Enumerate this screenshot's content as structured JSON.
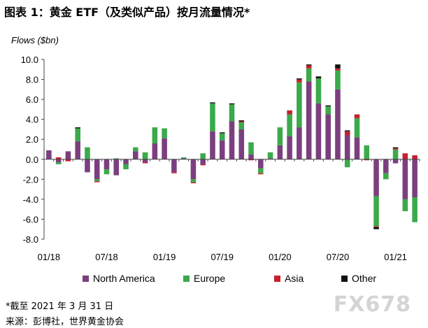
{
  "title": "图表 1：黄金 ETF（及类似产品）按月流量情况*",
  "note": "*截至 2021 年 3 月 31 日",
  "source": "来源：彭博社，世界黄金协会",
  "watermark": "FX678",
  "chart_data": {
    "type": "bar",
    "stacked": true,
    "ylabel": "Flows ($bn)",
    "ylim": [
      -8.0,
      10.0
    ],
    "yticks": [
      "-8.0",
      "-6.0",
      "-4.0",
      "-2.0",
      "0.0",
      "2.0",
      "4.0",
      "6.0",
      "8.0",
      "10.0"
    ],
    "x_tick_labels": [
      {
        "index": 0,
        "label": "01/18"
      },
      {
        "index": 6,
        "label": "07/18"
      },
      {
        "index": 12,
        "label": "01/19"
      },
      {
        "index": 18,
        "label": "07/19"
      },
      {
        "index": 24,
        "label": "01/20"
      },
      {
        "index": 30,
        "label": "07/20"
      },
      {
        "index": 36,
        "label": "01/21"
      }
    ],
    "categories": [
      "01/18",
      "02/18",
      "03/18",
      "04/18",
      "05/18",
      "06/18",
      "07/18",
      "08/18",
      "09/18",
      "10/18",
      "11/18",
      "12/18",
      "01/19",
      "02/19",
      "03/19",
      "04/19",
      "05/19",
      "06/19",
      "07/19",
      "08/19",
      "09/19",
      "10/19",
      "11/19",
      "12/19",
      "01/20",
      "02/20",
      "03/20",
      "04/20",
      "05/20",
      "06/20",
      "07/20",
      "08/20",
      "09/20",
      "10/20",
      "11/20",
      "12/20",
      "01/21",
      "02/21",
      "03/21"
    ],
    "legend_position": "bottom",
    "grid": false,
    "series": [
      {
        "name": "North America",
        "color": "#7b3f7f",
        "values": [
          0.9,
          -0.3,
          0.8,
          1.8,
          -1.3,
          -2.0,
          -1.0,
          -1.6,
          -0.5,
          0.8,
          -0.3,
          1.6,
          2.1,
          -1.3,
          0.1,
          -2.0,
          -0.5,
          2.8,
          1.9,
          3.8,
          3.0,
          0.5,
          -0.9,
          0.1,
          1.4,
          2.3,
          3.2,
          7.8,
          5.6,
          4.5,
          7.0,
          2.4,
          2.2,
          0.0,
          -3.7,
          -1.4,
          -0.4,
          -4.0,
          -3.8
        ]
      },
      {
        "name": "Europe",
        "color": "#3aaa4a",
        "values": [
          0.0,
          -0.2,
          0.0,
          1.3,
          1.2,
          -0.2,
          -0.5,
          0.1,
          -0.5,
          0.4,
          0.7,
          1.6,
          1.0,
          0.0,
          0.1,
          -0.3,
          0.6,
          2.8,
          0.7,
          1.7,
          0.7,
          1.2,
          -0.5,
          0.6,
          1.8,
          2.2,
          4.5,
          1.3,
          2.5,
          0.8,
          1.9,
          -0.8,
          1.9,
          1.4,
          -3.0,
          -0.6,
          1.0,
          -1.2,
          -2.5
        ]
      },
      {
        "name": "Asia",
        "color": "#c8202d",
        "values": [
          0.0,
          0.2,
          -0.2,
          0.0,
          0.0,
          -0.1,
          0.0,
          0.0,
          0.0,
          0.0,
          -0.1,
          0.0,
          0.0,
          -0.1,
          0.0,
          -0.1,
          -0.1,
          0.0,
          0.0,
          0.0,
          0.1,
          -0.1,
          -0.1,
          0.0,
          0.0,
          0.4,
          0.3,
          0.3,
          0.0,
          0.0,
          0.2,
          0.4,
          0.4,
          -0.1,
          -0.1,
          0.0,
          0.1,
          0.6,
          0.4
        ]
      },
      {
        "name": "Other",
        "color": "#111111",
        "values": [
          0.0,
          0.0,
          0.0,
          0.1,
          0.0,
          0.0,
          0.0,
          0.0,
          0.0,
          0.0,
          0.0,
          0.0,
          0.0,
          0.0,
          0.0,
          0.0,
          0.0,
          0.1,
          0.1,
          0.1,
          0.1,
          0.0,
          0.0,
          0.0,
          0.0,
          0.0,
          0.1,
          0.1,
          0.2,
          0.1,
          0.4,
          0.1,
          0.0,
          0.0,
          -0.2,
          0.0,
          0.1,
          0.0,
          0.0
        ]
      }
    ]
  }
}
